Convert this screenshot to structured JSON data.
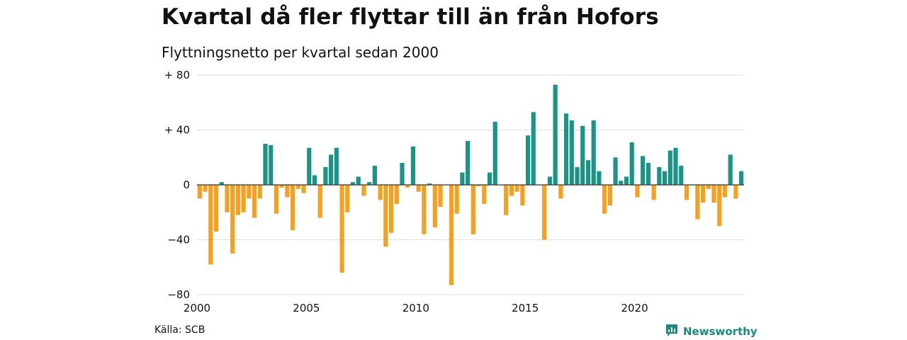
{
  "title": "Kvartal då fler flyttar till än från Hofors",
  "subtitle": "Flyttningsnetto per kvartal sedan 2000",
  "source": "Källa: SCB",
  "brand": {
    "name": "Newsworthy",
    "icon": "newsworthy-logo-icon"
  },
  "colors": {
    "positive": "#1a9486",
    "negative": "#f5a01f",
    "grid": "#dddddd",
    "zero": "#333333"
  },
  "chart_data": {
    "type": "bar",
    "title": "Kvartal då fler flyttar till än från Hofors",
    "subtitle": "Flyttningsnetto per kvartal sedan 2000",
    "xlabel": "",
    "ylabel": "",
    "start": "2000",
    "xlim": [
      2000,
      2025
    ],
    "ylim": [
      -80,
      80
    ],
    "yticks": [
      80,
      40,
      0,
      -40,
      -80
    ],
    "ytick_labels": [
      "+ 80",
      "+ 40",
      "0",
      "−40",
      "−80"
    ],
    "xticks": [
      2000,
      2005,
      2010,
      2015,
      2020
    ],
    "xtick_labels": [
      "2000",
      "2005",
      "2010",
      "2015",
      "2020"
    ],
    "grid": true,
    "values": [
      -10,
      -5,
      -58,
      -34,
      2,
      -20,
      -50,
      -22,
      -20,
      -10,
      -24,
      -10,
      30,
      29,
      -21,
      -2,
      -9,
      -33,
      -3,
      -6,
      27,
      7,
      -24,
      13,
      22,
      27,
      -64,
      -20,
      2,
      6,
      -8,
      2,
      14,
      -11,
      -45,
      -35,
      -14,
      16,
      -2,
      28,
      -5,
      -36,
      1,
      -31,
      -16,
      0,
      -73,
      -21,
      9,
      32,
      -36,
      -1,
      -14,
      9,
      46,
      0,
      -22,
      -8,
      -5,
      -15,
      36,
      53,
      0,
      -40,
      6,
      73,
      -10,
      52,
      47,
      13,
      43,
      18,
      47,
      10,
      -21,
      -15,
      20,
      3,
      6,
      31,
      -9,
      21,
      16,
      -11,
      13,
      10,
      25,
      27,
      14,
      -11,
      0,
      -25,
      -13,
      -3,
      -13,
      -30,
      -9,
      22,
      -10,
      10
    ]
  }
}
